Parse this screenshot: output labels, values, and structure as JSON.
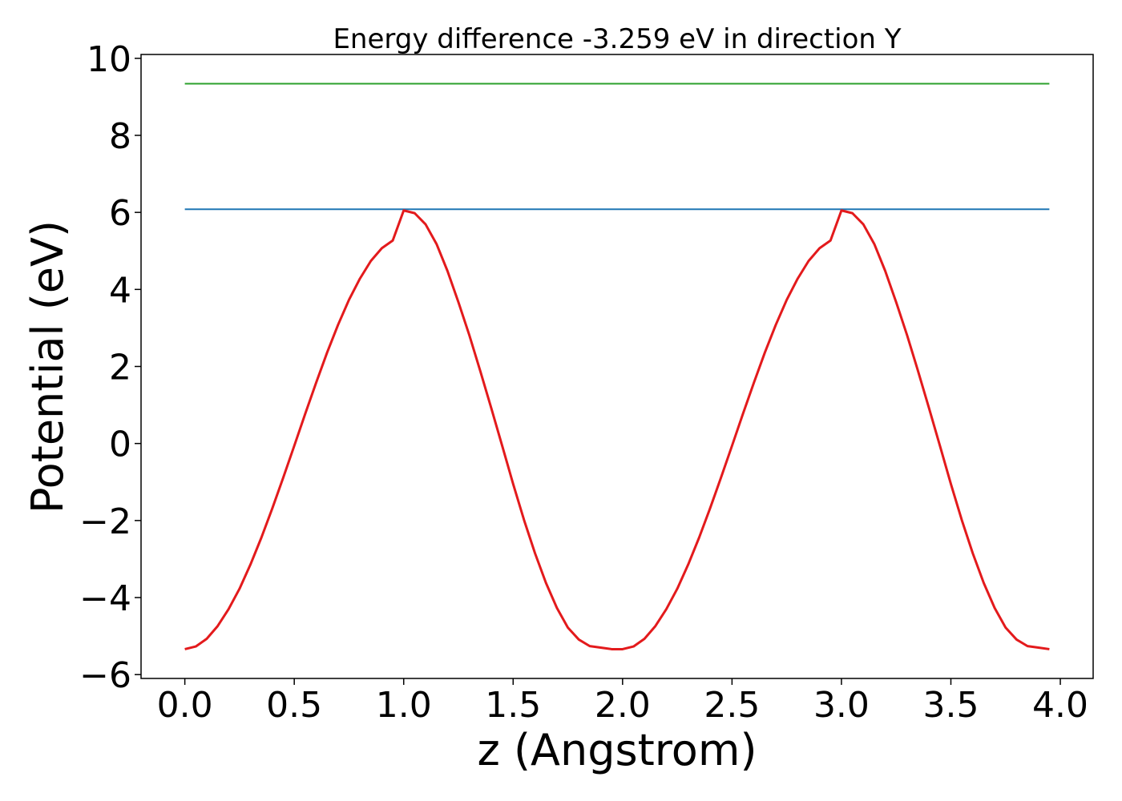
{
  "chart_data": {
    "type": "line",
    "title": "Energy difference -3.259 eV in direction Y",
    "xlabel": "z (Angstrom)",
    "ylabel": "Potential (eV)",
    "xlim": [
      -0.2,
      4.15
    ],
    "ylim": [
      -6.1,
      10.1
    ],
    "x_ticks": [
      0.0,
      0.5,
      1.0,
      1.5,
      2.0,
      2.5,
      3.0,
      3.5,
      4.0
    ],
    "x_tick_labels": [
      "0.0",
      "0.5",
      "1.0",
      "1.5",
      "2.0",
      "2.5",
      "3.0",
      "3.5",
      "4.0"
    ],
    "y_ticks": [
      -6,
      -4,
      -2,
      0,
      2,
      4,
      6,
      8,
      10
    ],
    "y_tick_labels": [
      "−6",
      "−4",
      "−2",
      "0",
      "2",
      "4",
      "6",
      "8",
      "10"
    ],
    "grid": false,
    "legend": "none",
    "series": [
      {
        "kind": "hline",
        "color": "#2ca02c",
        "y": 9.34,
        "x_range": [
          0.0,
          3.95
        ]
      },
      {
        "kind": "hline",
        "color": "#1f77b4",
        "y": 6.08,
        "x_range": [
          0.0,
          3.95
        ]
      },
      {
        "kind": "curve",
        "color": "#e31a1c",
        "x": [
          0.0,
          0.05,
          0.1,
          0.15,
          0.2,
          0.25,
          0.3,
          0.35,
          0.4,
          0.45,
          0.5,
          0.55,
          0.6,
          0.65,
          0.7,
          0.75,
          0.8,
          0.85,
          0.9,
          0.95,
          1.0,
          1.05,
          1.1,
          1.15,
          1.2,
          1.25,
          1.3,
          1.35,
          1.4,
          1.45,
          1.5,
          1.55,
          1.6,
          1.65,
          1.7,
          1.75,
          1.8,
          1.85,
          1.9,
          1.95,
          2.0,
          2.05,
          2.1,
          2.15,
          2.2,
          2.25,
          2.3,
          2.35,
          2.4,
          2.45,
          2.5,
          2.55,
          2.6,
          2.65,
          2.7,
          2.75,
          2.8,
          2.85,
          2.9,
          2.95,
          3.0,
          3.05,
          3.1,
          3.15,
          3.2,
          3.25,
          3.3,
          3.35,
          3.4,
          3.45,
          3.5,
          3.55,
          3.6,
          3.65,
          3.7,
          3.75,
          3.8,
          3.85,
          3.9,
          3.95
        ],
        "y": [
          -5.34,
          -5.27,
          -5.07,
          -4.74,
          -4.3,
          -3.77,
          -3.14,
          -2.44,
          -1.68,
          -0.88,
          -0.06,
          0.77,
          1.58,
          2.36,
          3.08,
          3.73,
          4.28,
          4.74,
          5.07,
          5.27,
          6.05,
          5.98,
          5.69,
          5.18,
          4.48,
          3.67,
          2.81,
          1.88,
          0.92,
          -0.06,
          -1.05,
          -1.99,
          -2.85,
          -3.62,
          -4.27,
          -4.78,
          -5.09,
          -5.26,
          -5.3,
          -5.34,
          -5.34,
          -5.27,
          -5.07,
          -4.74,
          -4.3,
          -3.77,
          -3.14,
          -2.44,
          -1.68,
          -0.88,
          -0.06,
          0.77,
          1.58,
          2.36,
          3.08,
          3.73,
          4.28,
          4.74,
          5.07,
          5.27,
          6.05,
          5.98,
          5.69,
          5.18,
          4.48,
          3.67,
          2.81,
          1.88,
          0.92,
          -0.06,
          -1.05,
          -1.99,
          -2.85,
          -3.62,
          -4.27,
          -4.78,
          -5.09,
          -5.26,
          -5.3,
          -5.34
        ]
      }
    ]
  }
}
